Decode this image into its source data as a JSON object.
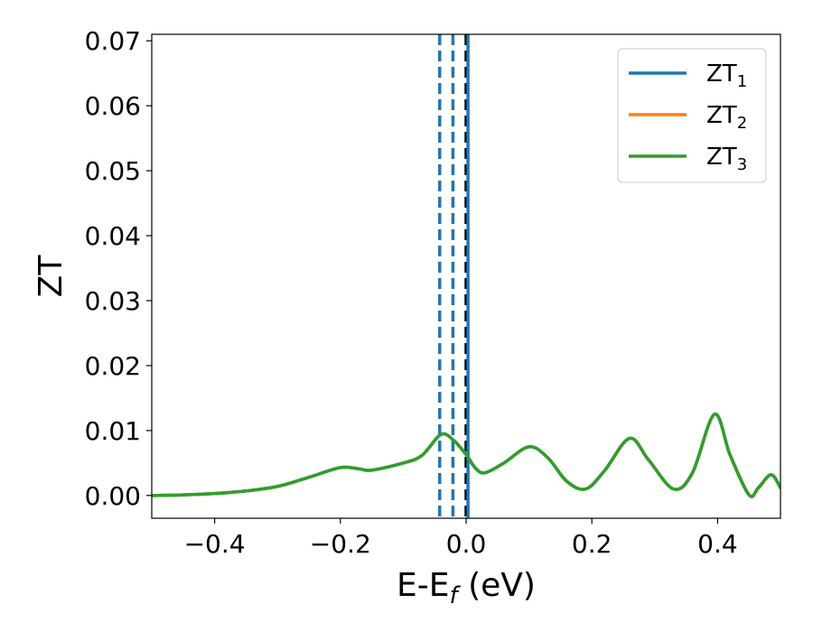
{
  "chart_data": {
    "type": "line",
    "xlabel": "E-E",
    "xlabel_sub": "f",
    "xlabel_unit": " (eV)",
    "ylabel": "ZT",
    "xlim": [
      -0.5,
      0.5
    ],
    "ylim": [
      -0.0035,
      0.071
    ],
    "xticks": [
      -0.4,
      -0.2,
      0.0,
      0.2,
      0.4
    ],
    "xtick_labels": [
      "−0.4",
      "−0.2",
      "0.0",
      "0.2",
      "0.4"
    ],
    "yticks": [
      0.0,
      0.01,
      0.02,
      0.03,
      0.04,
      0.05,
      0.06,
      0.07
    ],
    "ytick_labels": [
      "0.00",
      "0.01",
      "0.02",
      "0.03",
      "0.04",
      "0.05",
      "0.06",
      "0.07"
    ],
    "grid": false,
    "legend_position": "top-right",
    "series": [
      {
        "name": "ZT",
        "name_sub": "1",
        "color": "#1f77b4",
        "x": [
          -0.5,
          -0.45,
          -0.4,
          -0.35,
          -0.3,
          -0.25,
          -0.2,
          -0.17,
          -0.15,
          -0.1,
          -0.07,
          -0.04,
          -0.02,
          0.0,
          0.015,
          0.03,
          0.06,
          0.1,
          0.13,
          0.16,
          0.19,
          0.22,
          0.26,
          0.29,
          0.33,
          0.36,
          0.395,
          0.42,
          0.45,
          0.465,
          0.485,
          0.5
        ],
        "y": [
          0.0,
          0.0001,
          0.0003,
          0.0007,
          0.0014,
          0.0028,
          0.0043,
          0.0041,
          0.0039,
          0.005,
          0.0062,
          0.0094,
          0.0085,
          0.0063,
          0.0042,
          0.0035,
          0.005,
          0.0075,
          0.0058,
          0.0022,
          0.001,
          0.0038,
          0.0088,
          0.0055,
          0.001,
          0.0035,
          0.0125,
          0.0062,
          0.0001,
          0.0012,
          0.0032,
          0.0012
        ]
      },
      {
        "name": "ZT",
        "name_sub": "2",
        "color": "#ff7f0e",
        "x": [
          -0.5,
          -0.45,
          -0.4,
          -0.35,
          -0.3,
          -0.25,
          -0.2,
          -0.17,
          -0.15,
          -0.1,
          -0.07,
          -0.04,
          -0.02,
          0.0,
          0.015,
          0.03,
          0.06,
          0.1,
          0.13,
          0.16,
          0.19,
          0.22,
          0.26,
          0.29,
          0.33,
          0.36,
          0.395,
          0.42,
          0.45,
          0.465,
          0.485,
          0.5
        ],
        "y": [
          0.0,
          0.0001,
          0.0003,
          0.0007,
          0.0014,
          0.0028,
          0.0043,
          0.0041,
          0.0039,
          0.005,
          0.0062,
          0.0094,
          0.0085,
          0.0063,
          0.0042,
          0.0035,
          0.005,
          0.0075,
          0.0058,
          0.0022,
          0.001,
          0.0038,
          0.0088,
          0.0055,
          0.001,
          0.0035,
          0.0125,
          0.0062,
          0.0001,
          0.0012,
          0.0032,
          0.0012
        ]
      },
      {
        "name": "ZT",
        "name_sub": "3",
        "color": "#2ca02c",
        "x": [
          -0.5,
          -0.45,
          -0.4,
          -0.35,
          -0.3,
          -0.25,
          -0.2,
          -0.17,
          -0.15,
          -0.1,
          -0.07,
          -0.04,
          -0.02,
          0.0,
          0.015,
          0.03,
          0.06,
          0.1,
          0.13,
          0.16,
          0.19,
          0.22,
          0.26,
          0.29,
          0.33,
          0.36,
          0.395,
          0.42,
          0.45,
          0.465,
          0.485,
          0.5
        ],
        "y": [
          0.0,
          0.0001,
          0.0003,
          0.0007,
          0.0014,
          0.0028,
          0.0043,
          0.0041,
          0.0039,
          0.005,
          0.0062,
          0.0094,
          0.0085,
          0.0063,
          0.0042,
          0.0035,
          0.005,
          0.0075,
          0.0058,
          0.0022,
          0.001,
          0.0038,
          0.0088,
          0.0055,
          0.001,
          0.0035,
          0.0125,
          0.0062,
          0.0001,
          0.0012,
          0.0032,
          0.0012
        ]
      }
    ],
    "vertical_lines": [
      {
        "x": -0.042,
        "color": "#1f77b4",
        "style": "dashed"
      },
      {
        "x": -0.021,
        "color": "#1f77b4",
        "style": "dashed"
      },
      {
        "x": 0.0,
        "color": "#000000",
        "style": "dashed"
      },
      {
        "x": 0.003,
        "color": "#1f77b4",
        "style": "solid"
      }
    ]
  }
}
